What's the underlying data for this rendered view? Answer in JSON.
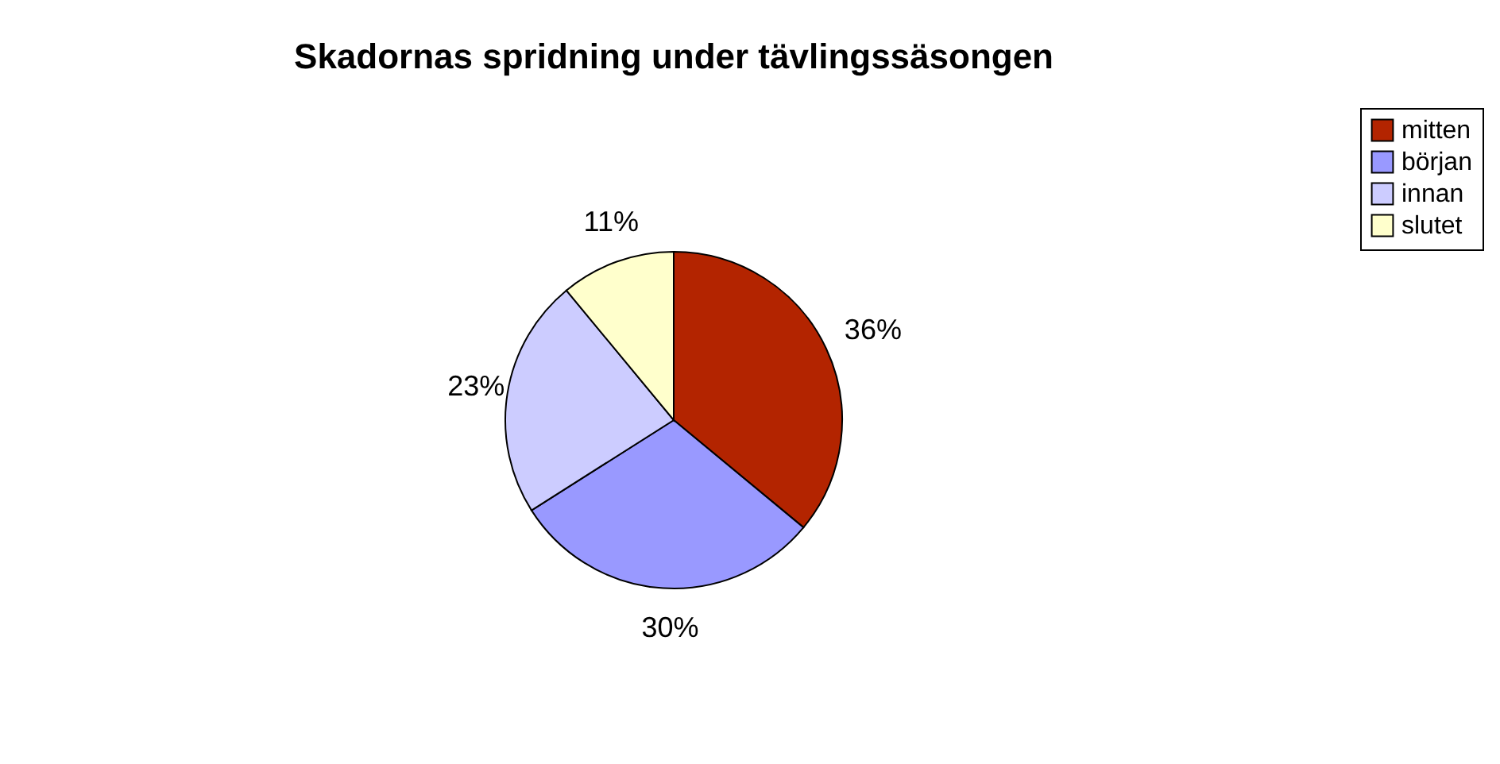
{
  "chart_data": {
    "type": "pie",
    "title": "Skadornas spridning under tävlingssäsongen",
    "categories": [
      "mitten",
      "början",
      "innan",
      "slutet"
    ],
    "values": [
      36,
      30,
      23,
      11
    ],
    "colors": [
      "#b32400",
      "#9999ff",
      "#ccccff",
      "#ffffcc"
    ],
    "value_labels": [
      "36%",
      "30%",
      "23%",
      "11%"
    ],
    "legend": "right"
  }
}
